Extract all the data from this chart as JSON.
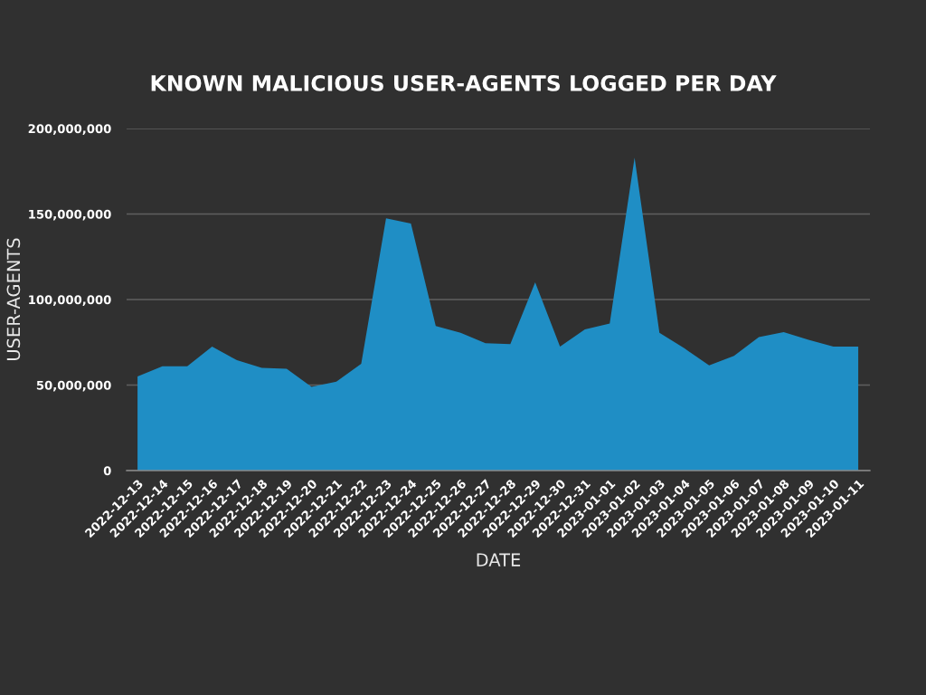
{
  "chart_data": {
    "type": "area",
    "title": "KNOWN MALICIOUS USER-AGENTS LOGGED PER DAY",
    "xlabel": "DATE",
    "ylabel": "USER-AGENTS",
    "categories": [
      "2022-12-13",
      "2022-12-14",
      "2022-12-15",
      "2022-12-16",
      "2022-12-17",
      "2022-12-18",
      "2022-12-19",
      "2022-12-20",
      "2022-12-21",
      "2022-12-22",
      "2022-12-23",
      "2022-12-24",
      "2022-12-25",
      "2022-12-26",
      "2022-12-27",
      "2022-12-28",
      "2022-12-29",
      "2022-12-30",
      "2022-12-31",
      "2023-01-01",
      "2023-01-02",
      "2023-01-03",
      "2023-01-04",
      "2023-01-05",
      "2023-01-06",
      "2023-01-07",
      "2023-01-08",
      "2023-01-09",
      "2023-01-10",
      "2023-01-11"
    ],
    "series": [
      {
        "color": "#1f8ec5",
        "values": [
          55000000,
          61000000,
          61000000,
          72500000,
          64500000,
          60000000,
          59500000,
          49000000,
          52000000,
          62500000,
          147500000,
          144500000,
          84500000,
          80500000,
          74500000,
          74000000,
          110000000,
          72500000,
          82500000,
          86000000,
          183000000,
          80500000,
          71500000,
          61500000,
          67000000,
          78000000,
          81000000,
          76500000,
          72500000,
          72500000
        ]
      }
    ],
    "ylim": [
      0,
      200000000
    ],
    "yticks": [
      0,
      {
        "value": 50000000,
        "label": "50,000,000"
      },
      {
        "value": 100000000,
        "label": "100,000,000"
      },
      {
        "value": 150000000,
        "label": "150,000,000"
      },
      {
        "value": 200000000,
        "label": "200,000,000"
      }
    ],
    "grid": "y"
  }
}
